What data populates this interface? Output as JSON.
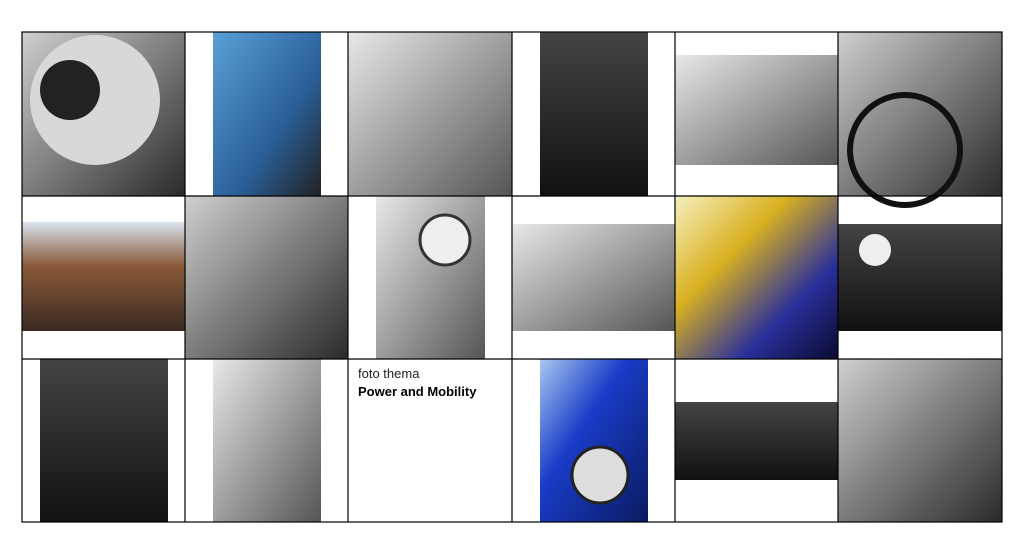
{
  "caption": {
    "kicker": "foto thema",
    "title": "Power and Mobility"
  }
}
